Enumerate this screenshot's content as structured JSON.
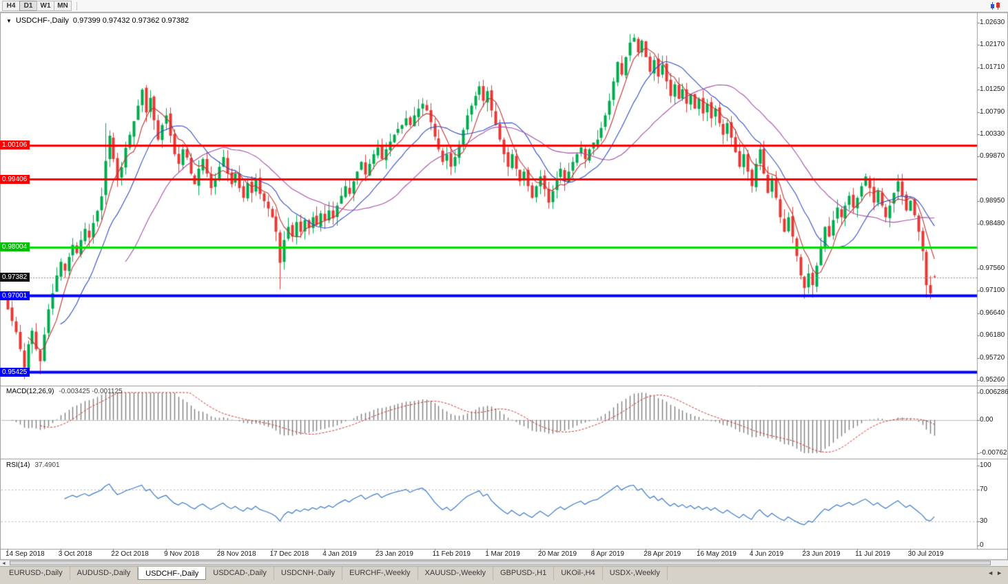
{
  "toolbar": {
    "timeframes": [
      {
        "label": "H4",
        "active": false
      },
      {
        "label": "D1",
        "active": true
      },
      {
        "label": "W1",
        "active": false
      },
      {
        "label": "MN",
        "active": false
      }
    ]
  },
  "chart": {
    "collapse_arrow": "▼",
    "symbol_title": "USDCHF-,Daily",
    "ohlc_text": "0.97399 0.97432 0.97362 0.97382"
  },
  "price_scale": {
    "ticks": [
      {
        "label": "1.02630",
        "price": 1.0263
      },
      {
        "label": "1.02170",
        "price": 1.0217
      },
      {
        "label": "1.01710",
        "price": 1.0171
      },
      {
        "label": "1.01250",
        "price": 1.0125
      },
      {
        "label": "1.00790",
        "price": 1.0079
      },
      {
        "label": "1.00330",
        "price": 1.0033
      },
      {
        "label": "0.99870",
        "price": 0.9987
      },
      {
        "label": "0.98950",
        "price": 0.9895
      },
      {
        "label": "0.98480",
        "price": 0.9848
      },
      {
        "label": "0.97560",
        "price": 0.9756
      },
      {
        "label": "0.97100",
        "price": 0.971
      },
      {
        "label": "0.96640",
        "price": 0.9664
      },
      {
        "label": "0.96180",
        "price": 0.9618
      },
      {
        "label": "0.95720",
        "price": 0.9572
      },
      {
        "label": "0.95260",
        "price": 0.9526
      }
    ],
    "badges": [
      {
        "label": "1.00106",
        "price": 1.00106,
        "color": "#FF0000"
      },
      {
        "label": "0.99406",
        "price": 0.99406,
        "color": "#FF0000"
      },
      {
        "label": "0.98004",
        "price": 0.98004,
        "color": "#00BE00"
      },
      {
        "label": "0.97382",
        "price": 0.97382,
        "color": "#101010"
      },
      {
        "label": "0.97001",
        "price": 0.97001,
        "color": "#0000FF"
      },
      {
        "label": "0.95425",
        "price": 0.95425,
        "color": "#0000FF"
      }
    ]
  },
  "chart_data": {
    "type": "candlestick",
    "symbol": "USDCHF",
    "period": "Daily",
    "up_color": "#00AB4E",
    "down_color": "#E53935",
    "y_axis": {
      "top_price": 1.0263,
      "bottom_price": 0.9526
    },
    "h_lines": [
      {
        "price": 1.00106,
        "color": "#FF0000",
        "width": 3,
        "style": "solid"
      },
      {
        "price": 0.99406,
        "color": "#FF0000",
        "width": 3,
        "style": "solid"
      },
      {
        "price": 0.98004,
        "color": "#00DD00",
        "width": 3,
        "style": "solid"
      },
      {
        "price": 0.97001,
        "color": "#0000FF",
        "width": 4,
        "style": "solid"
      },
      {
        "price": 0.95425,
        "color": "#0000FF",
        "width": 4,
        "style": "solid"
      },
      {
        "price": 0.97382,
        "color": "#8a8a8a",
        "width": 1,
        "style": "dotted"
      }
    ],
    "ma": [
      {
        "period": 6,
        "color": "#C53030"
      },
      {
        "period": 14,
        "color": "#2F4BC0"
      },
      {
        "period": 30,
        "color": "#A64CA6"
      }
    ],
    "closes": [
      0.9672,
      0.9648,
      0.9625,
      0.959,
      0.9552,
      0.96,
      0.9628,
      0.959,
      0.9565,
      0.962,
      0.9672,
      0.9705,
      0.9742,
      0.977,
      0.9752,
      0.978,
      0.9805,
      0.9788,
      0.9815,
      0.9838,
      0.982,
      0.985,
      0.9875,
      0.9905,
      0.9978,
      1.003,
      0.9982,
      0.994,
      0.9965,
      1.0005,
      1.0032,
      1.006,
      1.0092,
      1.0125,
      1.0078,
      1.0108,
      1.0062,
      1.0022,
      1.0052,
      1.0072,
      1.003,
      0.9992,
      0.9972,
      1.0002,
      0.9985,
      0.9952,
      0.993,
      0.9962,
      0.9982,
      0.9952,
      0.9922,
      0.9942,
      0.9966,
      0.9986,
      0.9952,
      0.993,
      0.9952,
      0.9922,
      0.9902,
      0.9932,
      0.9912,
      0.9942,
      0.991,
      0.9895,
      0.988,
      0.9862,
      0.9832,
      0.9768,
      0.9815,
      0.9842,
      0.9822,
      0.9852,
      0.9832,
      0.9856,
      0.984,
      0.9862,
      0.9846,
      0.987,
      0.9855,
      0.9876,
      0.986,
      0.9886,
      0.9906,
      0.9926,
      0.991,
      0.9936,
      0.9956,
      0.9976,
      0.995,
      0.9972,
      0.9992,
      1.0006,
      0.9982,
      1.0002,
      1.0018,
      1.0032,
      1.0044,
      1.0052,
      1.0066,
      1.0052,
      1.0072,
      1.0086,
      1.0096,
      1.0082,
      1.0058,
      1.0028,
      1.0002,
      0.9976,
      0.9992,
      0.9966,
      0.9986,
      1.0012,
      1.0042,
      1.0072,
      1.0092,
      1.0112,
      1.0132,
      1.0102,
      1.0122,
      1.0082,
      1.0052,
      1.0022,
      0.9992,
      0.9966,
      0.9992,
      0.9962,
      0.9936,
      0.9956,
      0.9926,
      0.9902,
      0.9926,
      0.9946,
      0.992,
      0.9892,
      0.9916,
      0.9942,
      0.9962,
      0.9936,
      0.9956,
      0.9976,
      0.9992,
      1.0006,
      0.9982,
      1.0002,
      1.0016,
      1.0022,
      1.0046,
      1.0072,
      1.0102,
      1.0142,
      1.0182,
      1.0156,
      1.0192,
      1.0222,
      1.0232,
      1.0202,
      1.0226,
      1.0192,
      1.0162,
      1.0186,
      1.0152,
      1.0176,
      1.0142,
      1.0112,
      1.0136,
      1.0106,
      1.0126,
      1.0096,
      1.0116,
      1.0086,
      1.0106,
      1.0076,
      1.0096,
      1.0066,
      1.0086,
      1.0056,
      1.0032,
      1.0056,
      1.0026,
      0.9996,
      0.9966,
      0.9992,
      0.9956,
      0.9926,
      0.9972,
      1.0002,
      0.9952,
      0.9912,
      0.9942,
      0.9902,
      0.9862,
      0.9832,
      0.9862,
      0.9822,
      0.9782,
      0.9742,
      0.9716,
      0.9746,
      0.9722,
      0.9762,
      0.9802,
      0.9842,
      0.9822,
      0.9856,
      0.9882,
      0.9862,
      0.9886,
      0.9906,
      0.9882,
      0.9902,
      0.9926,
      0.9946,
      0.9922,
      0.9892,
      0.9916,
      0.9886,
      0.9862,
      0.9886,
      0.9912,
      0.9936,
      0.9906,
      0.9876,
      0.9896,
      0.9866,
      0.9832,
      0.9792,
      0.9722,
      0.9705,
      0.9738
    ],
    "wick_overrides": {
      "0": {
        "h": 0.971
      },
      "4": {
        "l": 0.9528
      },
      "8": {
        "l": 0.9538
      },
      "24": {
        "h": 1.0056
      },
      "33": {
        "h": 1.0128
      },
      "67": {
        "l": 0.9713
      },
      "116": {
        "h": 1.0142
      },
      "154": {
        "h": 1.024
      },
      "185": {
        "h": 1.0008
      },
      "196": {
        "l": 0.9694
      },
      "198": {
        "l": 0.9696
      },
      "211": {
        "h": 0.9952
      },
      "226": {
        "l": 0.9696
      },
      "227": {
        "l": 0.9693
      }
    },
    "last_candle": {
      "open": 0.97399,
      "high": 0.97432,
      "low": 0.97362,
      "close": 0.97382
    },
    "date_labels": [
      {
        "d": 0,
        "label": "14 Sep 2018"
      },
      {
        "d": 13,
        "label": "3 Oct 2018"
      },
      {
        "d": 26,
        "label": "22 Oct 2018"
      },
      {
        "d": 39,
        "label": "9 Nov 2018"
      },
      {
        "d": 52,
        "label": "28 Nov 2018"
      },
      {
        "d": 65,
        "label": "17 Dec 2018"
      },
      {
        "d": 78,
        "label": "4 Jan 2019"
      },
      {
        "d": 91,
        "label": "23 Jan 2019"
      },
      {
        "d": 105,
        "label": "11 Feb 2019"
      },
      {
        "d": 118,
        "label": "1 Mar 2019"
      },
      {
        "d": 131,
        "label": "20 Mar 2019"
      },
      {
        "d": 144,
        "label": "8 Apr 2019"
      },
      {
        "d": 157,
        "label": "28 Apr 2019"
      },
      {
        "d": 170,
        "label": "16 May 2019"
      },
      {
        "d": 183,
        "label": "4 Jun 2019"
      },
      {
        "d": 196,
        "label": "23 Jun 2019"
      },
      {
        "d": 209,
        "label": "11 Jul 2019"
      },
      {
        "d": 222,
        "label": "30 Jul 2019"
      }
    ]
  },
  "macd_panel": {
    "title": "MACD(12,26,9)",
    "values": "-0.003425 -0.001125",
    "hist_color": "#7d7d7d",
    "signal_color": "#CC3333",
    "scale_labels": [
      {
        "v": 0.006286,
        "label": "0.006286"
      },
      {
        "v": 0,
        "label": "0.00"
      },
      {
        "v": -0.00762,
        "label": "-0.00762"
      }
    ]
  },
  "rsi_panel": {
    "title": "RSI(14)",
    "value": "37.4901",
    "line_color": "#3878C8",
    "levels": [
      {
        "v": 100,
        "label": "100",
        "dotted": false
      },
      {
        "v": 70,
        "label": "70",
        "dotted": true
      },
      {
        "v": 30,
        "label": "30",
        "dotted": true
      },
      {
        "v": 0,
        "label": "0",
        "dotted": false
      }
    ]
  },
  "scrollbar": {
    "left_arrow": "◄"
  },
  "tabs": {
    "items": [
      "EURUSD-,Daily",
      "AUDUSD-,Daily",
      "USDCHF-,Daily",
      "USDCAD-,Daily",
      "USDCNH-,Daily",
      "EURCHF-,Weekly",
      "XAUUSD-,Weekly",
      "GBPUSD-,H1",
      "UKOil-,H4",
      "USDX-,Weekly"
    ],
    "active_index": 2,
    "nav": {
      "prev": "◄",
      "next": "►"
    }
  }
}
